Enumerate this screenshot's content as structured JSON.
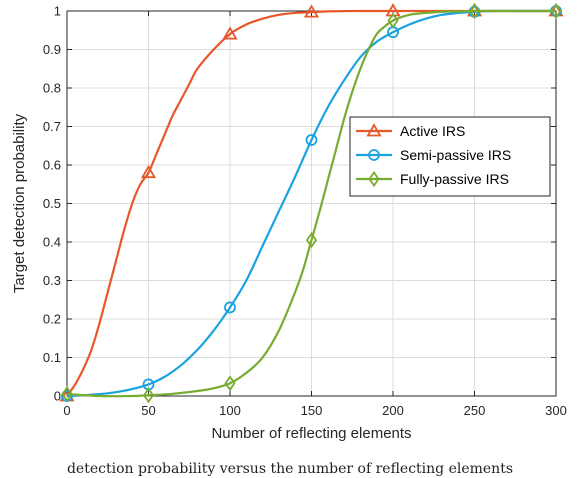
{
  "caption_fragment": "detection probability versus the number of reflecting elements",
  "chart_data": {
    "type": "line",
    "title": "",
    "xlabel": "Number of reflecting elements",
    "ylabel": "Target detection probability",
    "xlim": [
      0,
      300
    ],
    "ylim": [
      0,
      1
    ],
    "xticks": [
      0,
      50,
      100,
      150,
      200,
      250,
      300
    ],
    "yticks": [
      0,
      0.1,
      0.2,
      0.3,
      0.4,
      0.5,
      0.6,
      0.7,
      0.8,
      0.9,
      1
    ],
    "ytick_labels": [
      "0",
      "0.1",
      "0.2",
      "0.3",
      "0.4",
      "0.5",
      "0.6",
      "0.7",
      "0.8",
      "0.9",
      "1"
    ],
    "grid": true,
    "legend_position": "right",
    "series": [
      {
        "name": "Active IRS",
        "color": "#E8572A",
        "marker": "triangle",
        "x": [
          0,
          5,
          10,
          15,
          20,
          25,
          30,
          35,
          40,
          45,
          50,
          55,
          60,
          65,
          70,
          75,
          80,
          90,
          100,
          110,
          120,
          130,
          140,
          150,
          160,
          180,
          200,
          220,
          250,
          300
        ],
        "y": [
          0.0,
          0.03,
          0.07,
          0.12,
          0.19,
          0.27,
          0.35,
          0.43,
          0.5,
          0.55,
          0.58,
          0.63,
          0.68,
          0.73,
          0.77,
          0.81,
          0.85,
          0.9,
          0.94,
          0.965,
          0.98,
          0.99,
          0.995,
          0.997,
          0.999,
          1.0,
          1.0,
          1.0,
          1.0,
          1.0
        ],
        "marker_x": [
          0,
          50,
          100,
          150,
          200,
          250,
          300
        ],
        "marker_y": [
          0.0,
          0.58,
          0.94,
          0.997,
          1.0,
          1.0,
          1.0
        ]
      },
      {
        "name": "Semi-passive IRS",
        "color": "#1AA3E0",
        "marker": "circle",
        "x": [
          0,
          10,
          20,
          30,
          40,
          50,
          60,
          70,
          80,
          90,
          100,
          110,
          120,
          130,
          140,
          150,
          160,
          170,
          180,
          190,
          200,
          210,
          220,
          230,
          240,
          250,
          260,
          280,
          300
        ],
        "y": [
          0.0,
          0.002,
          0.005,
          0.01,
          0.018,
          0.03,
          0.05,
          0.08,
          0.12,
          0.17,
          0.23,
          0.3,
          0.39,
          0.48,
          0.57,
          0.665,
          0.75,
          0.82,
          0.88,
          0.92,
          0.945,
          0.965,
          0.98,
          0.99,
          0.995,
          0.998,
          1.0,
          1.0,
          1.0
        ],
        "marker_x": [
          0,
          50,
          100,
          150,
          200,
          250,
          300
        ],
        "marker_y": [
          0.0,
          0.03,
          0.23,
          0.665,
          0.945,
          0.998,
          1.0
        ]
      },
      {
        "name": "Fully-passive IRS",
        "color": "#77AC30",
        "marker": "diamond",
        "x": [
          0,
          20,
          40,
          50,
          60,
          70,
          80,
          90,
          100,
          110,
          120,
          130,
          140,
          145,
          150,
          155,
          160,
          165,
          170,
          175,
          180,
          185,
          190,
          195,
          200,
          210,
          220,
          230,
          240,
          250,
          270,
          300
        ],
        "y": [
          0.005,
          0.0,
          0.0,
          0.002,
          0.004,
          0.008,
          0.013,
          0.02,
          0.033,
          0.06,
          0.1,
          0.17,
          0.27,
          0.33,
          0.405,
          0.48,
          0.56,
          0.64,
          0.72,
          0.79,
          0.85,
          0.9,
          0.94,
          0.96,
          0.975,
          0.99,
          0.995,
          0.998,
          0.999,
          1.0,
          1.0,
          1.0
        ],
        "marker_x": [
          0,
          50,
          100,
          150,
          200,
          250,
          300
        ],
        "marker_y": [
          0.005,
          0.002,
          0.033,
          0.405,
          0.975,
          1.0,
          1.0
        ]
      }
    ]
  }
}
